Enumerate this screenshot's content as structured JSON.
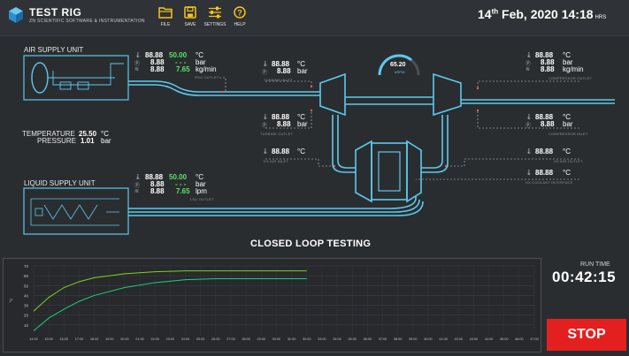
{
  "app": {
    "name": "TEST RIG",
    "subtitle": "ZN SCIENTIFIC SOFTWARE & INSTRUMENTATION"
  },
  "toolbar": {
    "file": "FILE",
    "save": "SAVE",
    "settings": "SETTINGS",
    "help": "HELP"
  },
  "datetime": {
    "day": "14",
    "suffix": "th",
    "rest": " Feb, 2020 14:18",
    "hrs": "HRS"
  },
  "diagram": {
    "air_unit": "AIR SUPPLY UNIT",
    "liquid_unit": "LIQUID SUPPLY UNIT",
    "ambient": {
      "temp_label": "TEMPERATURE",
      "temp_value": "25.50",
      "temp_unit": "°C",
      "press_label": "PRESSURE",
      "press_value": "1.01",
      "press_unit": "bar"
    },
    "rsu": {
      "label": "RSU OUTLET",
      "temp": "88.88",
      "temp_set": "50.00",
      "temp_unit": "°C",
      "press": "8.88",
      "press_set": "- - -",
      "press_unit": "bar",
      "flow": "8.88",
      "flow_set": "7.65",
      "flow_unit": "kg/min"
    },
    "lsu": {
      "label": "LSU OUTLET",
      "temp": "88.88",
      "temp_set": "50.00",
      "temp_unit": "°C",
      "press": "8.88",
      "press_set": "- - -",
      "press_unit": "bar",
      "flow": "8.88",
      "flow_set": "7.65",
      "flow_unit": "lpm"
    },
    "turbine_inlet": {
      "label": "TURBINE INLET",
      "temp": "88.88",
      "temp_unit": "°C",
      "press": "8.88",
      "press_unit": "bar"
    },
    "turbine_outlet": {
      "label": "TURBINE OUTLET",
      "temp": "88.88",
      "temp_unit": "°C",
      "press": "8.88",
      "press_unit": "bar"
    },
    "compressor_outlet": {
      "label": "COMPRESSOR OUTLET",
      "temp": "88.88",
      "temp_unit": "°C",
      "press": "8.88",
      "press_unit": "bar",
      "flow": "8.88",
      "flow_unit": "kg/min"
    },
    "compressor_inlet": {
      "label": "COMPRESSOR INLET",
      "temp": "88.88",
      "temp_unit": "°C",
      "press": "8.88",
      "press_unit": "bar"
    },
    "hx_air_inlet": {
      "label": "HX AIR INLET",
      "temp": "88.88",
      "temp_unit": "°C"
    },
    "hx_air_outlet": {
      "label": "HX AIR OUTLET",
      "temp": "88.88",
      "temp_unit": "°C"
    },
    "hx_coolant": {
      "label": "HX COOLANT INTERFACE",
      "temp": "88.88",
      "temp_unit": "°C"
    },
    "speed": {
      "value": "65.20",
      "unit": "kRPM"
    }
  },
  "mode_title": "CLOSED LOOP TESTING",
  "runtime": {
    "label": "RUN TIME",
    "value": "00:42:15"
  },
  "stop_label": "STOP",
  "chart_data": {
    "type": "line",
    "title": "",
    "xlabel": "",
    "ylabel": "°C",
    "ylim": [
      0,
      70
    ],
    "yticks": [
      10,
      20,
      30,
      40,
      50,
      60,
      70
    ],
    "xticks": [
      "14:00",
      "15:00",
      "16:00",
      "17:00",
      "18:00",
      "19:00",
      "20:00",
      "21:00",
      "22:00",
      "23:00",
      "24:00",
      "25:00",
      "26:00",
      "27:00",
      "28:00",
      "29:00",
      "30:00",
      "31:00",
      "32:00",
      "33:00",
      "34:00",
      "35:00",
      "36:00",
      "37:00",
      "38:00",
      "39:00",
      "40:00",
      "41:00",
      "42:00",
      "43:00",
      "44:00",
      "45:00",
      "46:00",
      "47:00"
    ],
    "grid": true,
    "legend": "none",
    "series": [
      {
        "color": "#7ed321",
        "x": [
          14,
          15,
          16,
          17,
          18,
          20,
          22,
          24,
          26,
          28,
          30,
          32
        ],
        "values": [
          24,
          38,
          48,
          54,
          58,
          62,
          64,
          65,
          65,
          65,
          65,
          65
        ]
      },
      {
        "color": "#1fcf7a",
        "x": [
          14,
          15,
          16,
          17,
          18,
          20,
          22,
          24,
          26,
          28,
          30,
          32
        ],
        "values": [
          4,
          17,
          26,
          34,
          40,
          48,
          53,
          56,
          57,
          57,
          57,
          57
        ]
      }
    ]
  }
}
